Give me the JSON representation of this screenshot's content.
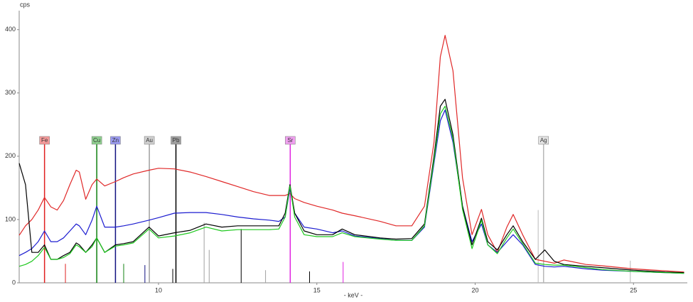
{
  "chart_data": {
    "type": "line",
    "y_label": "cps",
    "x_label": "- keV -",
    "xlim": [
      5.6,
      26.7
    ],
    "ylim": [
      0,
      430
    ],
    "xticks": [
      10,
      15,
      20,
      25
    ],
    "yticks": [
      0,
      100,
      200,
      300,
      400
    ],
    "x": [
      5.6,
      5.8,
      6.0,
      6.2,
      6.4,
      6.6,
      6.8,
      7.0,
      7.2,
      7.4,
      7.5,
      7.7,
      7.9,
      8.05,
      8.3,
      8.64,
      8.9,
      9.2,
      9.7,
      10.0,
      10.5,
      11.0,
      11.5,
      12.0,
      12.5,
      13.0,
      13.5,
      13.8,
      14.0,
      14.15,
      14.3,
      14.6,
      15.0,
      15.5,
      15.8,
      16.2,
      17.0,
      17.5,
      18.0,
      18.4,
      18.7,
      18.9,
      19.05,
      19.3,
      19.6,
      19.9,
      20.2,
      20.4,
      20.7,
      21.0,
      21.2,
      21.5,
      21.9,
      22.2,
      22.5,
      22.8,
      23.5,
      24.0,
      25.0,
      26.0,
      26.6
    ],
    "series": [
      {
        "color": "#e02828",
        "values": [
          75,
          90,
          100,
          115,
          135,
          120,
          115,
          130,
          155,
          178,
          175,
          132,
          155,
          164,
          153,
          160,
          166,
          172,
          178,
          181,
          180,
          175,
          168,
          160,
          152,
          144,
          138,
          138,
          138,
          141,
          133,
          127,
          121,
          115,
          110,
          106,
          97,
          90,
          90,
          121,
          222,
          357,
          391,
          335,
          166,
          76,
          116,
          76,
          48,
          88,
          108,
          76,
          37,
          34,
          31,
          36,
          29,
          27,
          22,
          19,
          17
        ]
      },
      {
        "color": "#1c1cd0",
        "values": [
          43,
          48,
          54,
          65,
          82,
          65,
          65,
          71,
          82,
          93,
          90,
          76,
          99,
          121,
          88,
          88,
          90,
          93,
          99,
          103,
          110,
          111,
          111,
          108,
          104,
          101,
          99,
          97,
          104,
          149,
          110,
          88,
          85,
          79,
          82,
          74,
          70,
          67,
          67,
          88,
          189,
          256,
          273,
          222,
          121,
          65,
          93,
          60,
          48,
          65,
          76,
          60,
          29,
          26,
          25,
          26,
          22,
          20,
          18,
          16,
          15
        ]
      },
      {
        "color": "#000000",
        "values": [
          189,
          155,
          48,
          48,
          60,
          37,
          37,
          43,
          48,
          63,
          60,
          48,
          60,
          71,
          48,
          60,
          62,
          65,
          88,
          74,
          79,
          83,
          93,
          88,
          90,
          90,
          90,
          90,
          110,
          155,
          110,
          82,
          76,
          76,
          85,
          76,
          71,
          69,
          70,
          93,
          200,
          279,
          290,
          234,
          121,
          60,
          102,
          65,
          52,
          76,
          90,
          65,
          37,
          52,
          34,
          29,
          26,
          24,
          20,
          17,
          16
        ]
      },
      {
        "color": "#1ec81e",
        "values": [
          26,
          29,
          34,
          43,
          56,
          37,
          37,
          40,
          46,
          60,
          57,
          48,
          57,
          71,
          48,
          58,
          60,
          63,
          85,
          71,
          74,
          79,
          88,
          82,
          84,
          84,
          84,
          85,
          104,
          153,
          104,
          76,
          73,
          73,
          79,
          73,
          69,
          67,
          67,
          90,
          194,
          267,
          279,
          228,
          116,
          54,
          99,
          60,
          46,
          71,
          85,
          62,
          31,
          29,
          28,
          28,
          24,
          21,
          18,
          16,
          15
        ]
      }
    ],
    "markers": [
      {
        "label": "Fe",
        "x": 6.4,
        "color": "#e02020",
        "box": "#f59a9a"
      },
      {
        "label": "Cu",
        "x": 8.05,
        "color": "#108010",
        "box": "#8fd08f"
      },
      {
        "label": "Zn",
        "x": 8.64,
        "color": "#101080",
        "box": "#9a9af0"
      },
      {
        "label": "Au",
        "x": 9.71,
        "color": "#a0a0a0",
        "box": "#d0d0d0"
      },
      {
        "label": "Pb",
        "x": 10.55,
        "color": "#000000",
        "box": "#a0a0a0"
      },
      {
        "label": "Sr",
        "x": 14.16,
        "color": "#e020e0",
        "box": "#f0a0f0"
      },
      {
        "label": "Ag",
        "x": 22.16,
        "color": "#b8b8b8",
        "box": "#e4e4e4"
      }
    ],
    "reference_lines": [
      {
        "x": 7.06,
        "height": 30,
        "color": "#e02020"
      },
      {
        "x": 8.9,
        "height": 30,
        "color": "#108010"
      },
      {
        "x": 9.57,
        "height": 28,
        "color": "#101080"
      },
      {
        "x": 10.45,
        "height": 22,
        "color": "#000000"
      },
      {
        "x": 11.44,
        "height": 95,
        "color": "#a0a0a0"
      },
      {
        "x": 11.6,
        "height": 52,
        "color": "#a0a0a0"
      },
      {
        "x": 12.61,
        "height": 85,
        "color": "#000000"
      },
      {
        "x": 13.38,
        "height": 20,
        "color": "#a0a0a0"
      },
      {
        "x": 14.77,
        "height": 18,
        "color": "#000000"
      },
      {
        "x": 15.83,
        "height": 33,
        "color": "#e020e0"
      },
      {
        "x": 21.99,
        "height": 115,
        "color": "#b8b8b8"
      },
      {
        "x": 24.9,
        "height": 35,
        "color": "#b8b8b8"
      }
    ]
  }
}
